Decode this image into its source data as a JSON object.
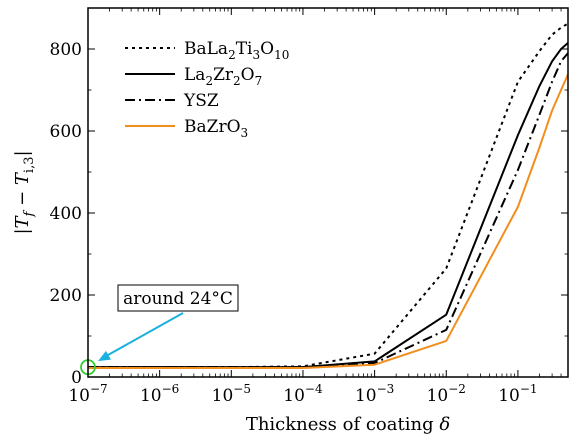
{
  "chart_data": {
    "type": "line",
    "xscale": "log",
    "xlim": [
      1e-07,
      0.5
    ],
    "ylim": [
      0,
      900
    ],
    "xlabel": "Thickness of coating δ",
    "ylabel": "|T_f − T_i,3|",
    "x_tick_values": [
      1e-07,
      1e-06,
      1e-05,
      0.0001,
      0.001,
      0.01,
      0.1
    ],
    "x_tick_labels": [
      {
        "base": "10",
        "exp": "−7"
      },
      {
        "base": "10",
        "exp": "−6"
      },
      {
        "base": "10",
        "exp": "−5"
      },
      {
        "base": "10",
        "exp": "−4"
      },
      {
        "base": "10",
        "exp": "−3"
      },
      {
        "base": "10",
        "exp": "−2"
      },
      {
        "base": "10",
        "exp": "−1"
      }
    ],
    "y_ticks": [
      0,
      200,
      400,
      600,
      800
    ],
    "legend_position": "top-right",
    "series": [
      {
        "name": "BaLa2Ti3O10",
        "name_parts": [
          [
            "BaLa",
            ""
          ],
          [
            "2",
            "sub"
          ],
          [
            "Ti",
            ""
          ],
          [
            "3",
            "sub"
          ],
          [
            "O",
            ""
          ],
          [
            "10",
            "sub"
          ]
        ],
        "style": "dotted",
        "color": "#000000",
        "x": [
          1e-07,
          1e-06,
          1e-05,
          0.0001,
          0.001,
          0.01,
          0.1,
          0.2,
          0.3,
          0.4,
          0.5
        ],
        "y": [
          24,
          24,
          24,
          26,
          57,
          265,
          720,
          795,
          835,
          852,
          862
        ]
      },
      {
        "name": "La2Zr2O7",
        "name_parts": [
          [
            "La",
            ""
          ],
          [
            "2",
            "sub"
          ],
          [
            "Zr",
            ""
          ],
          [
            "2",
            "sub"
          ],
          [
            "O",
            ""
          ],
          [
            "7",
            "sub"
          ]
        ],
        "style": "solid",
        "color": "#000000",
        "x": [
          1e-07,
          1e-06,
          1e-05,
          0.0001,
          0.001,
          0.01,
          0.1,
          0.2,
          0.3,
          0.4,
          0.5
        ],
        "y": [
          24,
          24,
          24,
          24,
          38,
          152,
          590,
          710,
          770,
          800,
          815
        ]
      },
      {
        "name": "YSZ",
        "name_parts": [
          [
            "YSZ",
            ""
          ]
        ],
        "style": "dashdot",
        "color": "#000000",
        "x": [
          1e-07,
          1e-06,
          1e-05,
          0.0001,
          0.001,
          0.01,
          0.1,
          0.2,
          0.3,
          0.4,
          0.5
        ],
        "y": [
          24,
          24,
          24,
          24,
          34,
          115,
          505,
          640,
          720,
          770,
          790
        ]
      },
      {
        "name": "BaZrO3",
        "name_parts": [
          [
            "BaZrO",
            ""
          ],
          [
            "3",
            "sub"
          ]
        ],
        "style": "solid",
        "color": "#f28e1c",
        "x": [
          1e-07,
          1e-06,
          1e-05,
          0.0001,
          0.001,
          0.01,
          0.1,
          0.2,
          0.3,
          0.4,
          0.5
        ],
        "y": [
          22,
          22,
          22,
          22,
          30,
          88,
          415,
          560,
          650,
          700,
          738
        ]
      }
    ],
    "annotations": [
      {
        "text": "around 24°C",
        "x": 1e-07,
        "y": 24,
        "arrow_color": "#1ab0e0",
        "marker_color": "#33cc33"
      }
    ]
  }
}
